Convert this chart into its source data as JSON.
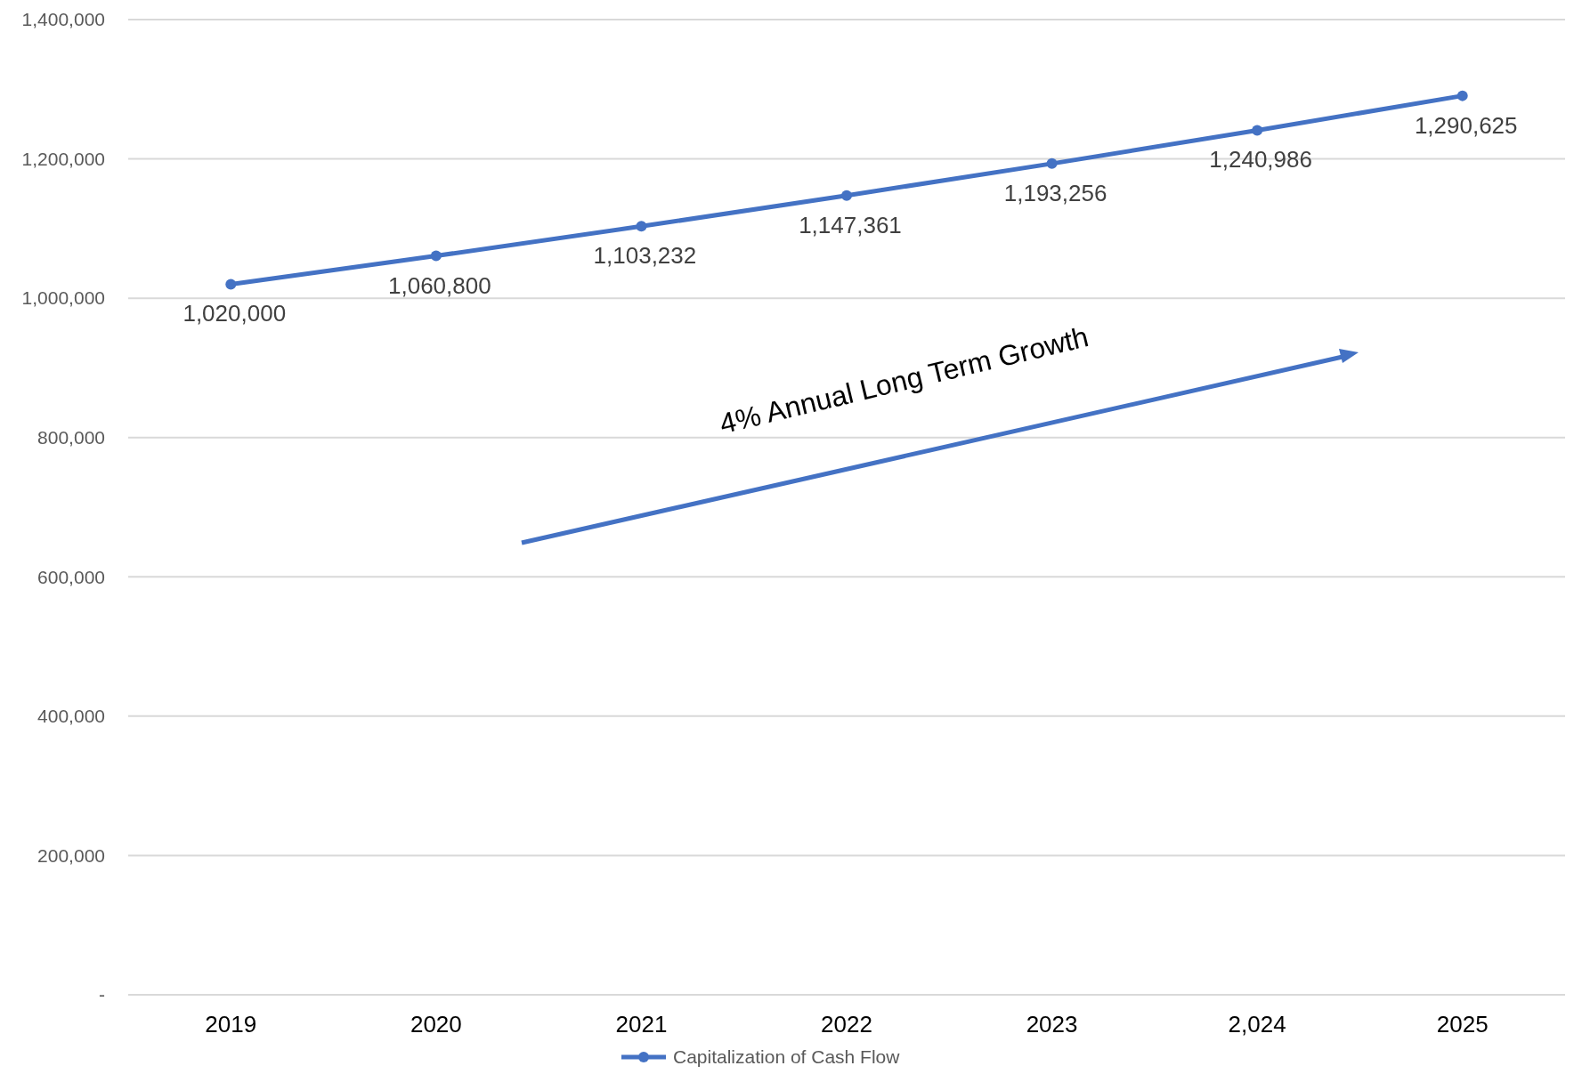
{
  "chart_data": {
    "type": "line",
    "categories": [
      "2019",
      "2020",
      "2021",
      "2022",
      "2023",
      "2,024",
      "2025"
    ],
    "series": [
      {
        "name": "Capitalization of Cash Flow",
        "color": "#4472c4",
        "values": [
          1020000,
          1060800,
          1103232,
          1147361,
          1193256,
          1240986,
          1290625
        ],
        "value_labels": [
          "1,020,000",
          "1,060,800",
          "1,103,232",
          "1,147,361",
          "1,193,256",
          "1,240,986",
          "1,290,625"
        ]
      }
    ],
    "ylim": [
      0,
      1400000
    ],
    "yticks": [
      {
        "value": 0,
        "label": "-"
      },
      {
        "value": 200000,
        "label": "200,000"
      },
      {
        "value": 400000,
        "label": "400,000"
      },
      {
        "value": 600000,
        "label": "600,000"
      },
      {
        "value": 800000,
        "label": "800,000"
      },
      {
        "value": 1000000,
        "label": "1,000,000"
      },
      {
        "value": 1200000,
        "label": "1,200,000"
      },
      {
        "value": 1400000,
        "label": "1,400,000"
      }
    ],
    "grid": "y",
    "legend": "bottom",
    "marker": "circle",
    "line_style": "solid",
    "annotations": [
      "4% Annual Long Term Growth"
    ]
  }
}
